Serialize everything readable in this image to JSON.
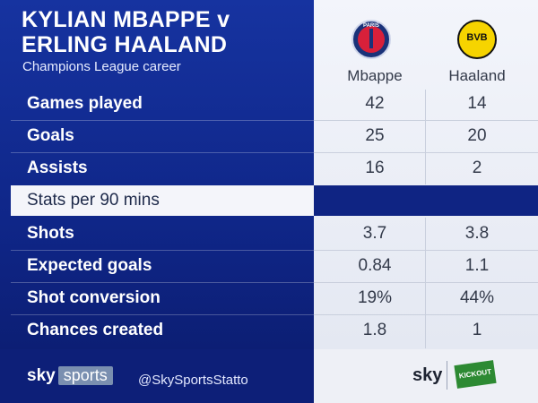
{
  "title_line1": "KYLIAN MBAPPE v",
  "title_line2": "ERLING HAALAND",
  "subtitle": "Champions League career",
  "players": [
    {
      "name": "Mbappe",
      "club_logo": "psg-crest-icon",
      "logo_text": "PARIS"
    },
    {
      "name": "Haaland",
      "club_logo": "bvb-crest-icon",
      "logo_text": "BVB"
    }
  ],
  "rows": [
    {
      "label": "Games played",
      "values": [
        "42",
        "14"
      ]
    },
    {
      "label": "Goals",
      "values": [
        "25",
        "20"
      ]
    },
    {
      "label": "Assists",
      "values": [
        "16",
        "2"
      ]
    }
  ],
  "section_label": "Stats per 90 mins",
  "per90_rows": [
    {
      "label": "Shots",
      "values": [
        "3.7",
        "3.8"
      ]
    },
    {
      "label": "Expected goals",
      "values": [
        "0.84",
        "1.1"
      ]
    },
    {
      "label": "Shot conversion",
      "values": [
        "19%",
        "44%"
      ]
    },
    {
      "label": "Chances created",
      "values": [
        "1.8",
        "1"
      ]
    }
  ],
  "footer": {
    "brand_sky": "sky",
    "brand_sports": "sports",
    "handle": "@SkySportsStatto",
    "right_sky": "sky",
    "right_logo_text": "KICKOUT"
  },
  "colors": {
    "panel_blue": "#1633a0",
    "panel_light": "#f3f5fb",
    "bvb_yellow": "#f6d400",
    "psg_red": "#d8203a"
  }
}
